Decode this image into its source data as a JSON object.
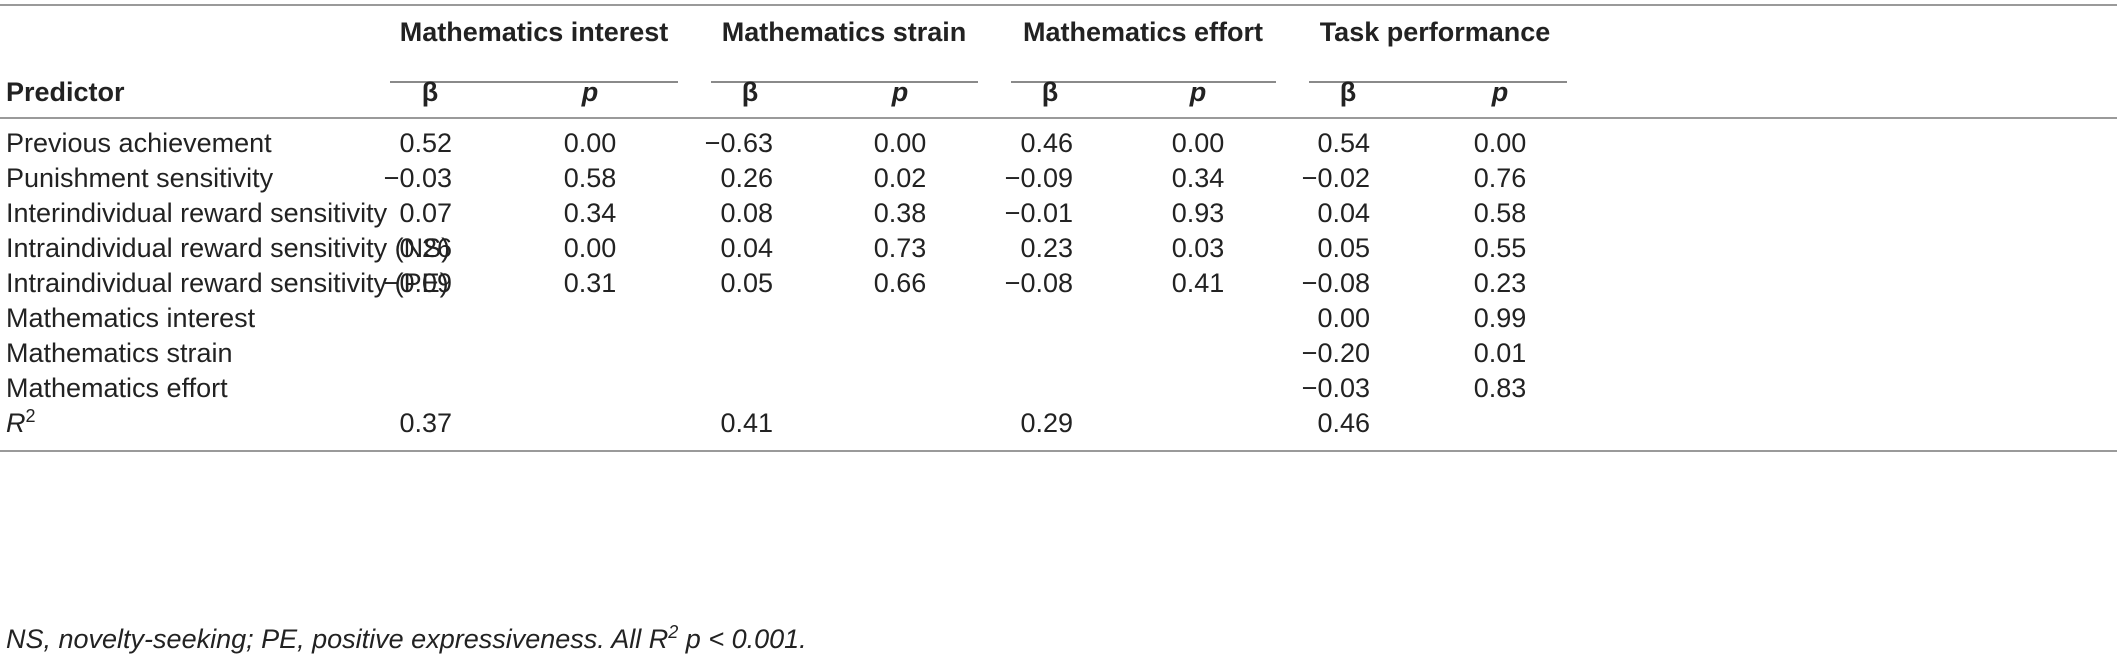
{
  "table": {
    "groups": [
      "Mathematics interest",
      "Mathematics strain",
      "Mathematics effort",
      "Task performance"
    ],
    "predictor_header": "Predictor",
    "beta_label": "β",
    "p_label": "p",
    "rows": [
      {
        "label": "Previous achievement",
        "values": [
          "0.52",
          "0.00",
          "−0.63",
          "0.00",
          "0.46",
          "0.00",
          "0.54",
          "0.00"
        ]
      },
      {
        "label": "Punishment sensitivity",
        "values": [
          "−0.03",
          "0.58",
          "0.26",
          "0.02",
          "−0.09",
          "0.34",
          "−0.02",
          "0.76"
        ]
      },
      {
        "label": "Interindividual reward sensitivity",
        "values": [
          "0.07",
          "0.34",
          "0.08",
          "0.38",
          "−0.01",
          "0.93",
          "0.04",
          "0.58"
        ]
      },
      {
        "label": "Intraindividual reward sensitivity (NS)",
        "values": [
          "0.26",
          "0.00",
          "0.04",
          "0.73",
          "0.23",
          "0.03",
          "0.05",
          "0.55"
        ]
      },
      {
        "label": "Intraindividual reward sensitivity (PE)",
        "values": [
          "−0.09",
          "0.31",
          "0.05",
          "0.66",
          "−0.08",
          "0.41",
          "−0.08",
          "0.23"
        ]
      },
      {
        "label": "Mathematics interest",
        "values": [
          "",
          "",
          "",
          "",
          "",
          "",
          "0.00",
          "0.99"
        ]
      },
      {
        "label": "Mathematics strain",
        "values": [
          "",
          "",
          "",
          "",
          "",
          "",
          "−0.20",
          "0.01"
        ]
      },
      {
        "label": "Mathematics effort",
        "values": [
          "",
          "",
          "",
          "",
          "",
          "",
          "−0.03",
          "0.83"
        ]
      }
    ],
    "r2_label": "R",
    "r2_sup": "2",
    "r2_values": [
      "0.37",
      "",
      "0.41",
      "",
      "0.29",
      "",
      "0.46",
      ""
    ]
  },
  "note": {
    "part1": "NS, novelty-seeking; PE, positive expressiveness. All R",
    "sup": "2",
    "part2": " p < 0.001."
  }
}
